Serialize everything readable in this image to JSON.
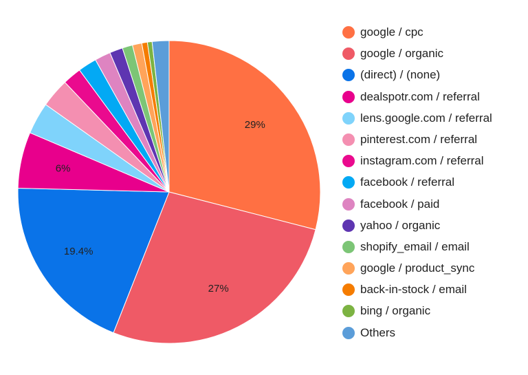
{
  "chart_data": {
    "type": "pie",
    "title": "",
    "slices": [
      {
        "label": "google / cpc",
        "value": 29,
        "color": "#ff7043",
        "display_label": "29%"
      },
      {
        "label": "google / organic",
        "value": 27,
        "color": "#ef5a66",
        "display_label": "27%"
      },
      {
        "label": "(direct) / (none)",
        "value": 19.4,
        "color": "#0a73e8",
        "display_label": "19.4%"
      },
      {
        "label": "dealspotr.com / referral",
        "value": 6,
        "color": "#e8008c",
        "display_label": "6%"
      },
      {
        "label": "lens.google.com / referral",
        "value": 3.4,
        "color": "#7fd3fb",
        "display_label": ""
      },
      {
        "label": "pinterest.com / referral",
        "value": 3.1,
        "color": "#f48fb1",
        "display_label": ""
      },
      {
        "label": "instagram.com / referral",
        "value": 2.0,
        "color": "#ea0a8e",
        "display_label": ""
      },
      {
        "label": "facebook / referral",
        "value": 2.0,
        "color": "#03a9f4",
        "display_label": ""
      },
      {
        "label": "facebook / paid",
        "value": 1.7,
        "color": "#de84c1",
        "display_label": ""
      },
      {
        "label": "yahoo / organic",
        "value": 1.4,
        "color": "#5e35b1",
        "display_label": ""
      },
      {
        "label": "shopify_email / email",
        "value": 1.1,
        "color": "#7cc576",
        "display_label": ""
      },
      {
        "label": "google / product_sync",
        "value": 1.0,
        "color": "#ffa45a",
        "display_label": ""
      },
      {
        "label": "back-in-stock / email",
        "value": 0.6,
        "color": "#f57c00",
        "display_label": ""
      },
      {
        "label": "bing / organic",
        "value": 0.5,
        "color": "#7cb342",
        "display_label": ""
      },
      {
        "label": "Others",
        "value": 1.8,
        "color": "#5b9dd9",
        "display_label": ""
      }
    ],
    "legend_position": "right",
    "start_angle": "12 o'clock",
    "direction": "clockwise"
  },
  "legend": {
    "items": [
      {
        "label": "google / cpc",
        "color": "#ff7043"
      },
      {
        "label": "google / organic",
        "color": "#ef5a66"
      },
      {
        "label": "(direct) / (none)",
        "color": "#0a73e8"
      },
      {
        "label": "dealspotr.com / referral",
        "color": "#e8008c"
      },
      {
        "label": "lens.google.com / referral",
        "color": "#7fd3fb"
      },
      {
        "label": "pinterest.com / referral",
        "color": "#f48fb1"
      },
      {
        "label": "instagram.com / referral",
        "color": "#ea0a8e"
      },
      {
        "label": "facebook / referral",
        "color": "#03a9f4"
      },
      {
        "label": "facebook / paid",
        "color": "#de84c1"
      },
      {
        "label": "yahoo / organic",
        "color": "#5e35b1"
      },
      {
        "label": "shopify_email / email",
        "color": "#7cc576"
      },
      {
        "label": "google / product_sync",
        "color": "#ffa45a"
      },
      {
        "label": "back-in-stock / email",
        "color": "#f57c00"
      },
      {
        "label": "bing / organic",
        "color": "#7cb342"
      },
      {
        "label": "Others",
        "color": "#5b9dd9"
      }
    ]
  }
}
